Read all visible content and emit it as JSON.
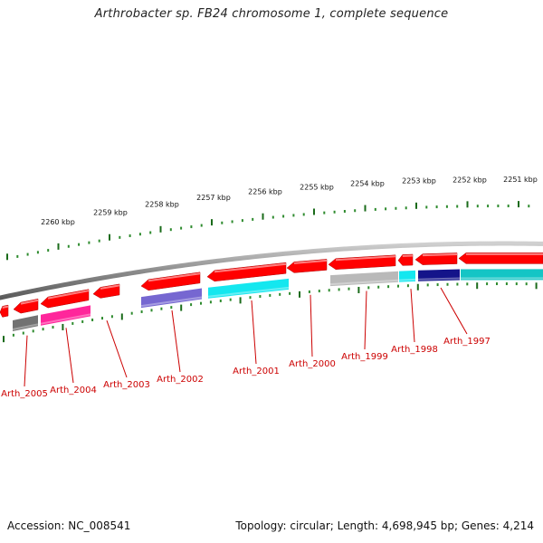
{
  "title": "Arthrobacter sp. FB24 chromosome 1, complete sequence",
  "footer": {
    "accession": "Accession: NC_008541",
    "summary": "Topology: circular; Length: 4,698,945 bp; Genes: 4,214"
  },
  "kbp_labels": [
    "2260 kbp",
    "2259 kbp",
    "2258 kbp",
    "2257 kbp",
    "2256 kbp",
    "2255 kbp",
    "2254 kbp",
    "2253 kbp",
    "2252 kbp",
    "2251 kbp"
  ],
  "gene_labels": [
    "Arth_2005",
    "Arth_2004",
    "Arth_2003",
    "Arth_2002",
    "Arth_2001",
    "Arth_2000",
    "Arth_1999",
    "Arth_1998",
    "Arth_1997"
  ],
  "colors": {
    "forward_gene": "#ff0000",
    "label": "#cc0000",
    "backbone": "#8c8c8c",
    "tick_major": "#1a6b1a",
    "tick_minor": "#2e8b2e",
    "cog_gray": "#666666",
    "cog_magenta": "#ff1493",
    "cog_slate": "#6a5acd",
    "cog_cyan": "#00e5ee",
    "cog_silver": "#b3b3b3",
    "cog_navy": "#000080",
    "cog_teal": "#00c0c0"
  }
}
